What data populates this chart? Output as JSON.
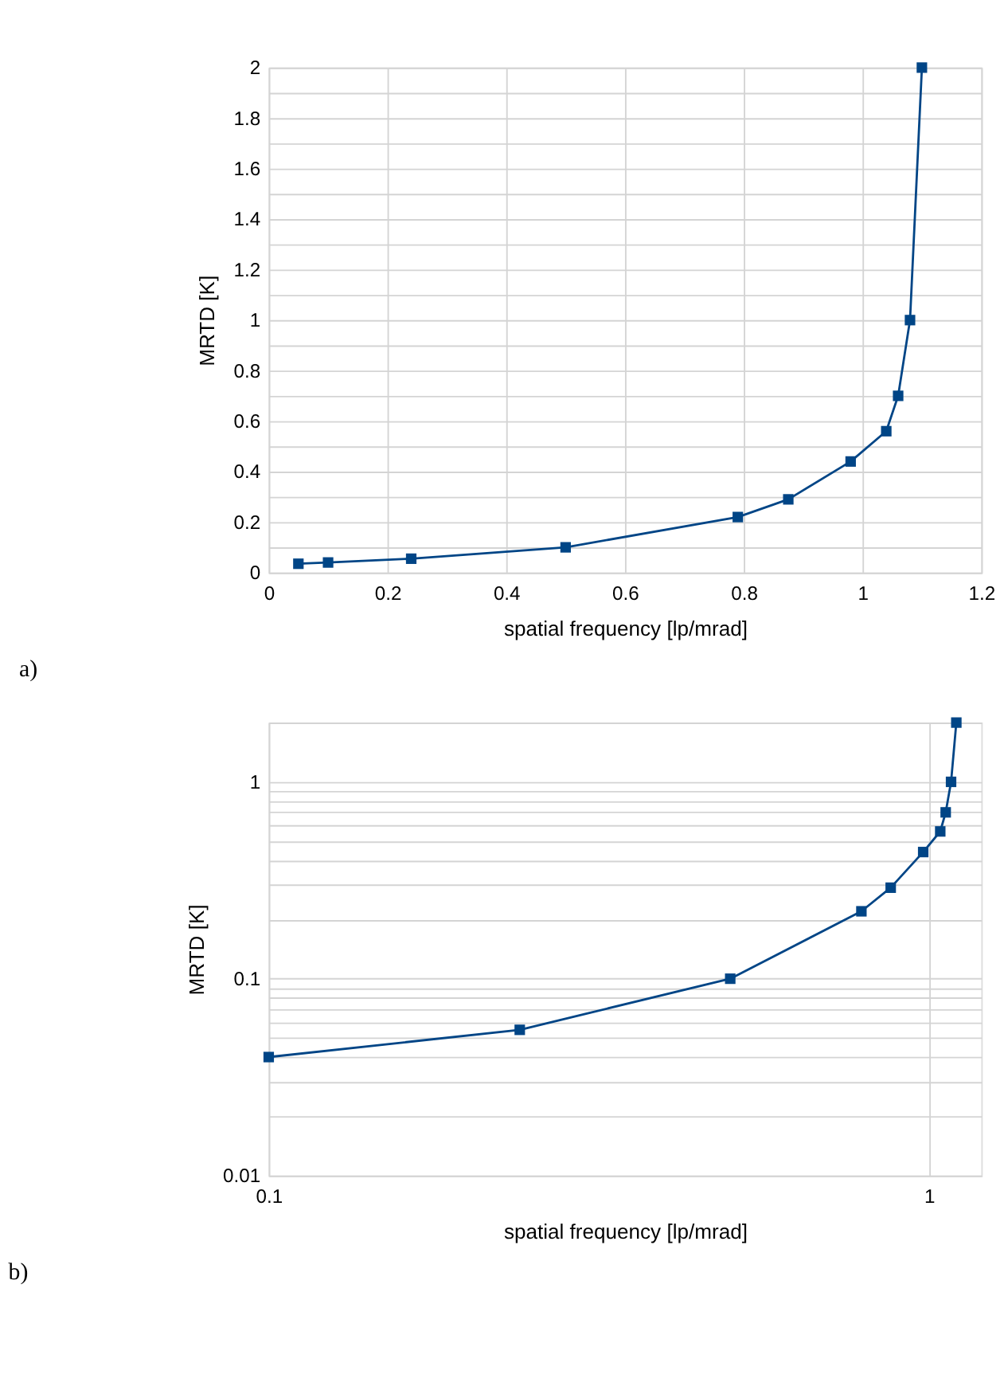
{
  "chart_data": [
    {
      "type": "line",
      "xlabel": "spatial frequency [lp/mrad]",
      "ylabel": "MRTD [K]",
      "annotations": [
        "a)"
      ],
      "x": [
        0.05,
        0.1,
        0.24,
        0.5,
        0.79,
        0.875,
        0.98,
        1.04,
        1.06,
        1.08,
        1.1
      ],
      "series": [
        {
          "color": "#004586",
          "values": [
            0.035,
            0.04,
            0.055,
            0.1,
            0.22,
            0.29,
            0.44,
            0.56,
            0.7,
            1.0,
            2.0
          ]
        }
      ],
      "xlim": [
        0,
        1.2
      ],
      "xticks": [
        0,
        0.2,
        0.4,
        0.6,
        0.8,
        1,
        1.2
      ],
      "ylim": [
        0,
        2
      ],
      "yticks": [
        0,
        {
          "value": 0.1,
          "label": null
        },
        0.2,
        {
          "value": 0.3,
          "label": null
        },
        0.4,
        {
          "value": 0.5,
          "label": null
        },
        0.6,
        {
          "value": 0.7,
          "label": null
        },
        0.8,
        {
          "value": 0.9,
          "label": null
        },
        1,
        {
          "value": 1.1,
          "label": null
        },
        1.2,
        {
          "value": 1.3,
          "label": null
        },
        1.4,
        {
          "value": 1.5,
          "label": null
        },
        1.6,
        {
          "value": 1.7,
          "label": null
        },
        1.8,
        {
          "value": 1.9,
          "label": null
        },
        2
      ],
      "grid": true,
      "marker": "square",
      "line_style": "solid"
    },
    {
      "type": "line",
      "xlabel": "spatial frequency [lp/mrad]",
      "ylabel": "MRTD [K]",
      "annotations": [
        "b)"
      ],
      "x": [
        0.1,
        0.24,
        0.5,
        0.79,
        0.875,
        0.98,
        1.04,
        1.06,
        1.08,
        1.1
      ],
      "series": [
        {
          "color": "#004586",
          "values": [
            0.04,
            0.055,
            0.1,
            0.22,
            0.29,
            0.44,
            0.56,
            0.7,
            1.0,
            2.0
          ]
        }
      ],
      "xlim": [
        0.1,
        1.2
      ],
      "xticks": [
        0.1,
        1
      ],
      "ylim": [
        0.01,
        2
      ],
      "yticks": [
        0.01,
        {
          "value": 0.02,
          "label": null
        },
        {
          "value": 0.03,
          "label": null
        },
        {
          "value": 0.04,
          "label": null
        },
        {
          "value": 0.05,
          "label": null
        },
        {
          "value": 0.06,
          "label": null
        },
        {
          "value": 0.07,
          "label": null
        },
        {
          "value": 0.08,
          "label": null
        },
        {
          "value": 0.09,
          "label": null
        },
        0.1,
        {
          "value": 0.2,
          "label": null
        },
        {
          "value": 0.3,
          "label": null
        },
        {
          "value": 0.4,
          "label": null
        },
        {
          "value": 0.5,
          "label": null
        },
        {
          "value": 0.6,
          "label": null
        },
        {
          "value": 0.7,
          "label": null
        },
        {
          "value": 0.8,
          "label": null
        },
        {
          "value": 0.9,
          "label": null
        },
        1,
        {
          "value": 2,
          "label": null
        }
      ],
      "log": "xy",
      "grid": true,
      "marker": "square",
      "line_style": "solid"
    }
  ]
}
